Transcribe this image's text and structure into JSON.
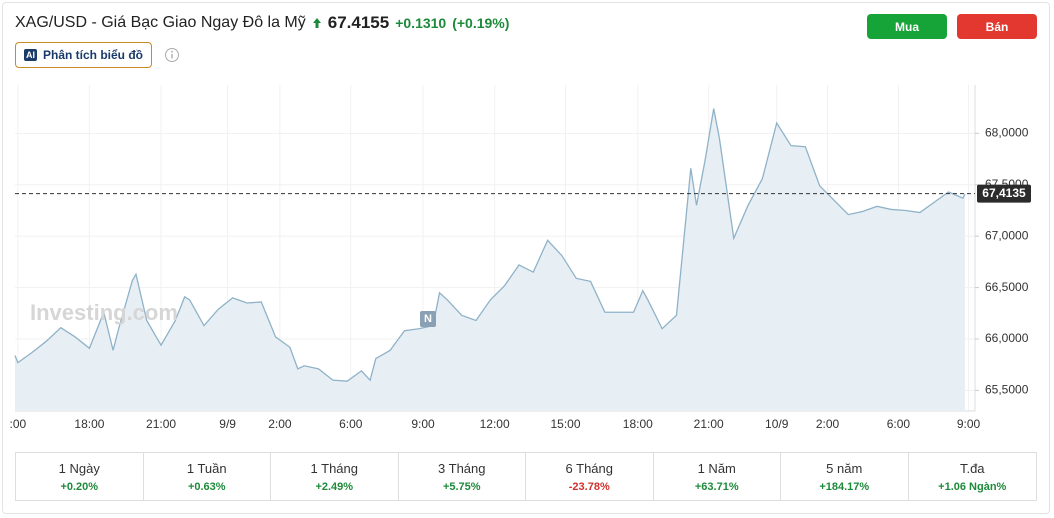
{
  "header": {
    "title": "XAG/USD - Giá Bạc Giao Ngay Đô la Mỹ",
    "price": "67.4155",
    "change": "+0.1310",
    "change_pct": "(+0.19%)",
    "buy": "Mua",
    "sell": "Bán",
    "ai_badge": "AI",
    "ai_button": "Phân tích biểu đồ"
  },
  "chart_data": {
    "type": "line",
    "watermark": "Investing.com",
    "marker": "N",
    "x": [
      -0.04,
      0,
      0.2,
      0.4,
      0.6,
      0.8,
      1.0,
      1.2,
      1.33,
      1.4,
      1.6,
      1.65,
      1.8,
      2.0,
      2.2,
      2.33,
      2.4,
      2.6,
      2.8,
      3.0,
      3.2,
      3.4,
      3.6,
      3.8,
      3.91,
      4.0,
      4.2,
      4.4,
      4.6,
      4.8,
      4.92,
      5.0,
      5.2,
      5.4,
      5.6,
      5.8,
      5.89,
      6.0,
      6.2,
      6.4,
      6.6,
      6.8,
      7.0,
      7.2,
      7.4,
      7.6,
      7.8,
      8.0,
      8.2,
      8.4,
      8.6,
      8.73,
      8.8,
      9.0,
      9.2,
      9.4,
      9.48,
      9.6,
      9.72,
      9.8,
      10.0,
      10.2,
      10.4,
      10.6,
      10.8,
      11.0,
      11.2,
      11.4,
      11.6,
      11.8,
      12.0,
      12.2,
      12.4,
      12.6,
      12.8,
      13.0,
      13.2,
      13.23
    ],
    "series": [
      {
        "color": "#8fb2c8",
        "values": [
          65.84,
          65.77,
          65.87,
          65.98,
          66.11,
          66.02,
          65.91,
          66.26,
          65.89,
          66.08,
          66.57,
          66.63,
          66.18,
          65.94,
          66.18,
          66.41,
          66.38,
          66.13,
          66.29,
          66.4,
          66.35,
          66.36,
          66.02,
          65.92,
          65.71,
          65.74,
          65.71,
          65.6,
          65.59,
          65.69,
          65.6,
          65.81,
          65.89,
          66.08,
          66.1,
          66.13,
          66.45,
          66.38,
          66.23,
          66.18,
          66.38,
          66.52,
          66.72,
          66.65,
          66.96,
          66.81,
          66.59,
          66.56,
          66.26,
          66.26,
          66.26,
          66.47,
          66.38,
          66.1,
          66.23,
          67.66,
          67.3,
          67.74,
          68.24,
          67.95,
          66.98,
          67.3,
          67.56,
          68.1,
          67.88,
          67.87,
          67.49,
          67.35,
          67.21,
          67.24,
          67.29,
          67.26,
          67.25,
          67.23,
          67.33,
          67.43,
          67.37,
          67.41
        ]
      }
    ],
    "xlim": [
      -0.04,
      13.37
    ],
    "ylim": [
      65.3,
      68.47
    ],
    "xticks": [
      {
        "value": 0,
        "label": ":00"
      },
      {
        "value": 1.0,
        "label": "18:00"
      },
      {
        "value": 2.0,
        "label": "21:00"
      },
      {
        "value": 2.93,
        "label": "9/9"
      },
      {
        "value": 3.66,
        "label": "2:00"
      },
      {
        "value": 4.65,
        "label": "6:00"
      },
      {
        "value": 5.66,
        "label": "9:00"
      },
      {
        "value": 6.66,
        "label": "12:00"
      },
      {
        "value": 7.65,
        "label": "15:00"
      },
      {
        "value": 8.66,
        "label": "18:00"
      },
      {
        "value": 9.65,
        "label": "21:00"
      },
      {
        "value": 10.6,
        "label": "10/9"
      },
      {
        "value": 11.31,
        "label": "2:00"
      },
      {
        "value": 12.3,
        "label": "6:00"
      },
      {
        "value": 13.28,
        "label": "9:00"
      }
    ],
    "yticks": [
      {
        "value": 65.5,
        "label": "65,5000"
      },
      {
        "value": 66,
        "label": "66,0000"
      },
      {
        "value": 66.5,
        "label": "66,5000"
      },
      {
        "value": 67,
        "label": "67,0000"
      },
      {
        "value": 67.5,
        "label": "67,5000"
      },
      {
        "value": 68,
        "label": "68,0000"
      }
    ],
    "current_price": {
      "value": 67.4135,
      "label": "67,4135"
    },
    "grid": true
  },
  "periods": [
    {
      "label": "1 Ngày",
      "change": "+0.20%",
      "color": "#1d8a3a"
    },
    {
      "label": "1 Tuần",
      "change": "+0.63%",
      "color": "#1d8a3a"
    },
    {
      "label": "1 Tháng",
      "change": "+2.49%",
      "color": "#1d8a3a"
    },
    {
      "label": "3 Tháng",
      "change": "+5.75%",
      "color": "#1d8a3a"
    },
    {
      "label": "6 Tháng",
      "change": "-23.78%",
      "color": "#d0312d"
    },
    {
      "label": "1 Năm",
      "change": "+63.71%",
      "color": "#1d8a3a"
    },
    {
      "label": "5 năm",
      "change": "+184.17%",
      "color": "#1d8a3a"
    },
    {
      "label": "T.đa",
      "change": "+1.06 Ngàn%",
      "color": "#1d8a3a"
    }
  ]
}
